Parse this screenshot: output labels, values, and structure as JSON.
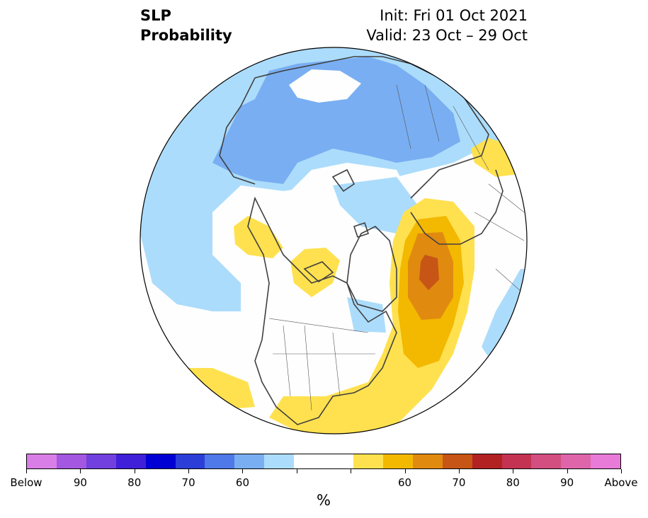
{
  "title": {
    "variable": "SLP",
    "subtitle": "Probability",
    "init": "Init: Fri 01 Oct 2021",
    "valid": "Valid: 23 Oct – 29 Oct"
  },
  "colorbar": {
    "unit": "%",
    "colors": [
      "#d97ee6",
      "#a457e0",
      "#7140df",
      "#4020d8",
      "#0000d4",
      "#2c3ed8",
      "#4f78e8",
      "#79aef2",
      "#acdcfb",
      "#ffffff",
      "#ffffff",
      "#ffe14f",
      "#f3b800",
      "#e08a10",
      "#c75516",
      "#b22222",
      "#c43352",
      "#d24f80",
      "#de65aa",
      "#e87ad8"
    ],
    "labels": [
      "Below",
      "90",
      "80",
      "70",
      "60",
      "",
      "",
      "60",
      "70",
      "80",
      "90",
      "Above"
    ]
  },
  "legend_semantics": {
    "blue": "below-normal probability",
    "yellow-red": "above-normal probability"
  },
  "map": {
    "projection": "north-polar-stereographic",
    "land_outline_color": "#404040"
  }
}
